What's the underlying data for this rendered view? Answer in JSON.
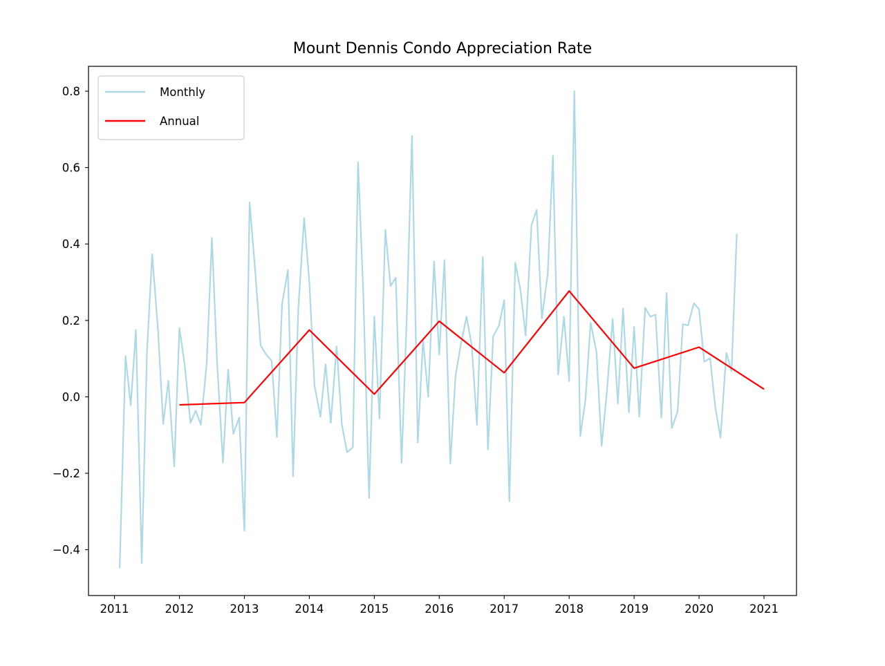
{
  "chart_data": {
    "type": "line",
    "title": "Mount Dennis Condo Appreciation Rate",
    "xlabel": "",
    "ylabel": "",
    "xlim": [
      2010.6,
      2021.5
    ],
    "ylim": [
      -0.52,
      0.865
    ],
    "x_ticks": [
      2011,
      2012,
      2013,
      2014,
      2015,
      2016,
      2017,
      2018,
      2019,
      2020,
      2021
    ],
    "x_tick_labels": [
      "2011",
      "2012",
      "2013",
      "2014",
      "2015",
      "2016",
      "2017",
      "2018",
      "2019",
      "2020",
      "2021"
    ],
    "y_ticks": [
      -0.4,
      -0.2,
      0.0,
      0.2,
      0.4,
      0.6,
      0.8
    ],
    "y_tick_labels": [
      "−0.4",
      "−0.2",
      "0.0",
      "0.2",
      "0.4",
      "0.6",
      "0.8"
    ],
    "legend_position": "top-left",
    "grid": false,
    "series": [
      {
        "name": "Monthly",
        "color": "#add8e6",
        "points": [
          [
            2011.08,
            -0.448
          ],
          [
            2011.17,
            0.107
          ],
          [
            2011.25,
            -0.022
          ],
          [
            2011.33,
            0.175
          ],
          [
            2011.42,
            -0.435
          ],
          [
            2011.5,
            0.117
          ],
          [
            2011.58,
            0.373
          ],
          [
            2011.67,
            0.175
          ],
          [
            2011.75,
            -0.071
          ],
          [
            2011.83,
            0.042
          ],
          [
            2011.92,
            -0.182
          ],
          [
            2012.0,
            0.18
          ],
          [
            2012.08,
            0.085
          ],
          [
            2012.17,
            -0.068
          ],
          [
            2012.25,
            -0.036
          ],
          [
            2012.33,
            -0.073
          ],
          [
            2012.42,
            0.089
          ],
          [
            2012.5,
            0.416
          ],
          [
            2012.58,
            0.089
          ],
          [
            2012.67,
            -0.172
          ],
          [
            2012.75,
            0.071
          ],
          [
            2012.83,
            -0.097
          ],
          [
            2012.92,
            -0.054
          ],
          [
            2013.0,
            -0.35
          ],
          [
            2013.08,
            0.509
          ],
          [
            2013.17,
            0.322
          ],
          [
            2013.25,
            0.135
          ],
          [
            2013.33,
            0.112
          ],
          [
            2013.42,
            0.094
          ],
          [
            2013.5,
            -0.105
          ],
          [
            2013.58,
            0.243
          ],
          [
            2013.67,
            0.332
          ],
          [
            2013.75,
            -0.208
          ],
          [
            2013.83,
            0.23
          ],
          [
            2013.92,
            0.468
          ],
          [
            2014.0,
            0.3
          ],
          [
            2014.08,
            0.029
          ],
          [
            2014.17,
            -0.052
          ],
          [
            2014.25,
            0.085
          ],
          [
            2014.33,
            -0.068
          ],
          [
            2014.42,
            0.132
          ],
          [
            2014.5,
            -0.072
          ],
          [
            2014.58,
            -0.145
          ],
          [
            2014.67,
            -0.132
          ],
          [
            2014.75,
            0.614
          ],
          [
            2014.83,
            0.272
          ],
          [
            2014.92,
            -0.265
          ],
          [
            2015.0,
            0.21
          ],
          [
            2015.08,
            -0.057
          ],
          [
            2015.17,
            0.437
          ],
          [
            2015.25,
            0.29
          ],
          [
            2015.33,
            0.312
          ],
          [
            2015.42,
            -0.173
          ],
          [
            2015.5,
            0.21
          ],
          [
            2015.58,
            0.683
          ],
          [
            2015.67,
            -0.12
          ],
          [
            2015.75,
            0.15
          ],
          [
            2015.83,
            0.0
          ],
          [
            2015.92,
            0.354
          ],
          [
            2016.0,
            0.11
          ],
          [
            2016.08,
            0.358
          ],
          [
            2016.17,
            -0.175
          ],
          [
            2016.25,
            0.054
          ],
          [
            2016.33,
            0.135
          ],
          [
            2016.42,
            0.21
          ],
          [
            2016.5,
            0.135
          ],
          [
            2016.58,
            -0.073
          ],
          [
            2016.67,
            0.366
          ],
          [
            2016.75,
            -0.138
          ],
          [
            2016.83,
            0.158
          ],
          [
            2016.92,
            0.187
          ],
          [
            2017.0,
            0.253
          ],
          [
            2017.08,
            -0.273
          ],
          [
            2017.17,
            0.351
          ],
          [
            2017.25,
            0.28
          ],
          [
            2017.33,
            0.16
          ],
          [
            2017.42,
            0.45
          ],
          [
            2017.5,
            0.489
          ],
          [
            2017.58,
            0.205
          ],
          [
            2017.67,
            0.322
          ],
          [
            2017.75,
            0.631
          ],
          [
            2017.83,
            0.058
          ],
          [
            2017.92,
            0.21
          ],
          [
            2018.0,
            0.041
          ],
          [
            2018.08,
            0.8
          ],
          [
            2018.17,
            -0.103
          ],
          [
            2018.25,
            -0.01
          ],
          [
            2018.33,
            0.194
          ],
          [
            2018.42,
            0.118
          ],
          [
            2018.5,
            -0.128
          ],
          [
            2018.58,
            0.012
          ],
          [
            2018.67,
            0.204
          ],
          [
            2018.75,
            -0.018
          ],
          [
            2018.83,
            0.231
          ],
          [
            2018.92,
            -0.041
          ],
          [
            2019.0,
            0.183
          ],
          [
            2019.08,
            -0.052
          ],
          [
            2019.17,
            0.233
          ],
          [
            2019.25,
            0.21
          ],
          [
            2019.33,
            0.215
          ],
          [
            2019.42,
            -0.054
          ],
          [
            2019.5,
            0.272
          ],
          [
            2019.58,
            -0.082
          ],
          [
            2019.67,
            -0.038
          ],
          [
            2019.75,
            0.19
          ],
          [
            2019.83,
            0.187
          ],
          [
            2019.92,
            0.245
          ],
          [
            2020.0,
            0.229
          ],
          [
            2020.08,
            0.092
          ],
          [
            2020.17,
            0.101
          ],
          [
            2020.25,
            -0.027
          ],
          [
            2020.33,
            -0.107
          ],
          [
            2020.42,
            0.115
          ],
          [
            2020.5,
            0.067
          ],
          [
            2020.58,
            0.427
          ]
        ]
      },
      {
        "name": "Annual",
        "color": "#ff0000",
        "points": [
          [
            2012.0,
            -0.021
          ],
          [
            2013.0,
            -0.015
          ],
          [
            2014.0,
            0.175
          ],
          [
            2015.0,
            0.007
          ],
          [
            2016.0,
            0.198
          ],
          [
            2017.0,
            0.063
          ],
          [
            2018.0,
            0.277
          ],
          [
            2019.0,
            0.075
          ],
          [
            2020.0,
            0.13
          ],
          [
            2021.0,
            0.02
          ]
        ]
      }
    ]
  }
}
